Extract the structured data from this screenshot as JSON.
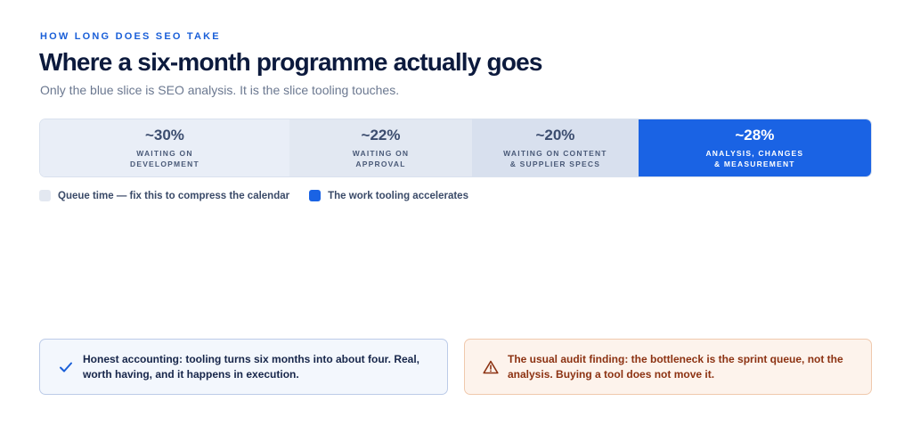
{
  "eyebrow": "HOW LONG DOES SEO TAKE",
  "title": "Where a six-month programme actually goes",
  "subtitle": "Only the blue slice is SEO analysis. It is the slice tooling touches.",
  "chart_data": {
    "type": "bar",
    "orientation": "horizontal-stacked",
    "categories": [
      "WAITING ON\nDEVELOPMENT",
      "WAITING ON\nAPPROVAL",
      "WAITING ON CONTENT\n& SUPPLIER SPECS",
      "ANALYSIS, CHANGES\n& MEASUREMENT"
    ],
    "values": [
      30,
      22,
      20,
      28
    ],
    "value_labels": [
      "~30%",
      "~22%",
      "~20%",
      "~28%"
    ],
    "unit": "%",
    "colors": [
      "#e9eef7",
      "#e2e8f2",
      "#d8e0ee",
      "#1a63e4"
    ],
    "legend": [
      {
        "label": "Queue time — fix this to compress the calendar",
        "color": "#e3e8f1"
      },
      {
        "label": "The work tooling accelerates",
        "color": "#1a63e4"
      }
    ],
    "legend_position": "bottom-left"
  },
  "cards": {
    "left": {
      "icon": "check-icon",
      "lead": "Honest accounting:",
      "text": " tooling turns six months into about four. Real, worth having, and it happens in execution."
    },
    "right": {
      "icon": "warning-icon",
      "lead": "The usual audit finding:",
      "text": " the bottleneck is the sprint queue, not the analysis. Buying a tool does not move it."
    }
  }
}
